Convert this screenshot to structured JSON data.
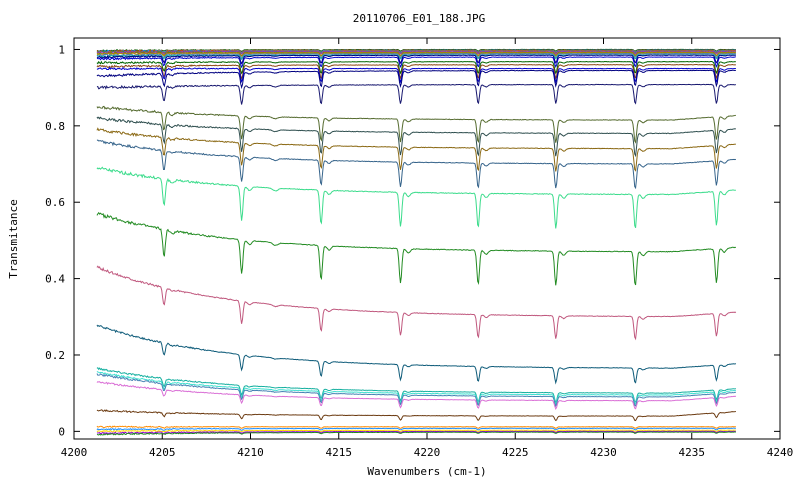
{
  "chart_data": {
    "type": "line",
    "title": "20110706_E01_188.JPG",
    "xlabel": "Wavenumbers (cm-1)",
    "ylabel": "Transmitance",
    "xlim": [
      4200,
      4240
    ],
    "ylim": [
      -0.02,
      1.03
    ],
    "x_ticks": [
      "4200",
      "4205",
      "4210",
      "4215",
      "4220",
      "4225",
      "4230",
      "4235",
      "4240"
    ],
    "y_ticks": [
      "0",
      "0.2",
      "0.4",
      "0.6",
      "0.8",
      "1"
    ],
    "grid": false,
    "legend": "none",
    "x_range": [
      4201.3,
      4237.5
    ],
    "absorption_lines": [
      4205.1,
      4209.5,
      4214.0,
      4218.5,
      4222.9,
      4227.3,
      4231.8,
      4236.4
    ],
    "series": [
      {
        "color": "#006400",
        "left": 0.997,
        "right": 1.0,
        "depth": 0.004
      },
      {
        "color": "#8b4513",
        "left": 0.996,
        "right": 0.999,
        "depth": 0.005
      },
      {
        "color": "#1e90ff",
        "left": 0.995,
        "right": 0.998,
        "depth": 0.005
      },
      {
        "color": "#ff4500",
        "left": 0.994,
        "right": 0.997,
        "depth": 0.006
      },
      {
        "color": "#2e8b57",
        "left": 0.993,
        "right": 0.996,
        "depth": 0.006
      },
      {
        "color": "#9932cc",
        "left": 0.992,
        "right": 0.995,
        "depth": 0.006
      },
      {
        "color": "#808000",
        "left": 0.99,
        "right": 0.993,
        "depth": 0.008
      },
      {
        "color": "#b8860b",
        "left": 0.988,
        "right": 0.991,
        "depth": 0.008
      },
      {
        "color": "#4682b4",
        "left": 0.985,
        "right": 0.989,
        "depth": 0.01
      },
      {
        "color": "#20b2aa",
        "left": 0.982,
        "right": 0.986,
        "depth": 0.01
      },
      {
        "color": "#000080",
        "left": 0.98,
        "right": 0.985,
        "depth": 0.02
      },
      {
        "color": "#0000cd",
        "left": 0.975,
        "right": 0.98,
        "depth": 0.025
      },
      {
        "color": "#006400",
        "left": 0.965,
        "right": 0.968,
        "depth": 0.03
      },
      {
        "color": "#8b4513",
        "left": 0.955,
        "right": 0.96,
        "depth": 0.035
      },
      {
        "color": "#0000cd",
        "left": 0.95,
        "right": 0.95,
        "depth": 0.035
      },
      {
        "color": "#000080",
        "left": 0.93,
        "right": 0.945,
        "depth": 0.04
      },
      {
        "color": "#191970",
        "left": 0.9,
        "right": 0.908,
        "depth": 0.05
      },
      {
        "color": "#556b2f",
        "left": 0.85,
        "right": 0.815,
        "depth": 0.06
      },
      {
        "color": "#2f4f4f",
        "left": 0.82,
        "right": 0.78,
        "depth": 0.06
      },
      {
        "color": "#8b6914",
        "left": 0.79,
        "right": 0.74,
        "depth": 0.06
      },
      {
        "color": "#36648b",
        "left": 0.76,
        "right": 0.7,
        "depth": 0.065
      },
      {
        "color": "#3cdc8c",
        "left": 0.69,
        "right": 0.62,
        "depth": 0.09
      },
      {
        "color": "#228b22",
        "left": 0.57,
        "right": 0.47,
        "depth": 0.09
      },
      {
        "color": "#c0587e",
        "left": 0.43,
        "right": 0.3,
        "depth": 0.06
      },
      {
        "color": "#0f5c7a",
        "left": 0.278,
        "right": 0.165,
        "depth": 0.04
      },
      {
        "color": "#17b0a0",
        "left": 0.165,
        "right": 0.1,
        "depth": 0.025
      },
      {
        "color": "#40e0d0",
        "left": 0.155,
        "right": 0.095,
        "depth": 0.025
      },
      {
        "color": "#4682b4",
        "left": 0.15,
        "right": 0.09,
        "depth": 0.025
      },
      {
        "color": "#da70d6",
        "left": 0.13,
        "right": 0.08,
        "depth": 0.022
      },
      {
        "color": "#6b3a10",
        "left": 0.055,
        "right": 0.04,
        "depth": 0.012
      },
      {
        "color": "#ff8c00",
        "left": 0.012,
        "right": 0.012,
        "depth": 0.004
      },
      {
        "color": "#1e90ff",
        "left": 0.005,
        "right": 0.008,
        "depth": 0.004
      },
      {
        "color": "#ffd700",
        "left": 0.0,
        "right": 0.003,
        "depth": 0.003
      },
      {
        "color": "#9400d3",
        "left": -0.005,
        "right": 0.0,
        "depth": 0.003
      },
      {
        "color": "#228b22",
        "left": -0.008,
        "right": -0.002,
        "depth": 0.003
      }
    ]
  }
}
